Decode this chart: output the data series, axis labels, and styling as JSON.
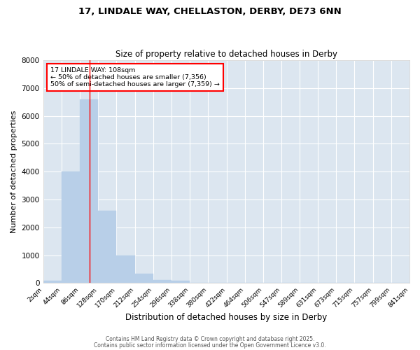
{
  "title1": "17, LINDALE WAY, CHELLASTON, DERBY, DE73 6NN",
  "title2": "Size of property relative to detached houses in Derby",
  "xlabel": "Distribution of detached houses by size in Derby",
  "ylabel": "Number of detached properties",
  "bar_color": "#b8cfe8",
  "background_color": "#dce6f0",
  "grid_color": "#ffffff",
  "fig_background": "#ffffff",
  "bin_edges": [
    2,
    44,
    86,
    128,
    170,
    212,
    254,
    296,
    338,
    380,
    422,
    464,
    506,
    547,
    589,
    631,
    673,
    715,
    757,
    799,
    841
  ],
  "bar_heights": [
    100,
    4000,
    6600,
    2600,
    1000,
    330,
    110,
    100,
    0,
    0,
    0,
    0,
    0,
    0,
    0,
    0,
    0,
    0,
    0,
    0
  ],
  "red_line_x": 108,
  "annotation_title": "17 LINDALE WAY: 108sqm",
  "annotation_line1": "← 50% of detached houses are smaller (7,356)",
  "annotation_line2": "50% of semi-detached houses are larger (7,359) →",
  "ylim": [
    0,
    8000
  ],
  "yticks": [
    0,
    1000,
    2000,
    3000,
    4000,
    5000,
    6000,
    7000,
    8000
  ],
  "footer1": "Contains HM Land Registry data © Crown copyright and database right 2025.",
  "footer2": "Contains public sector information licensed under the Open Government Licence v3.0."
}
